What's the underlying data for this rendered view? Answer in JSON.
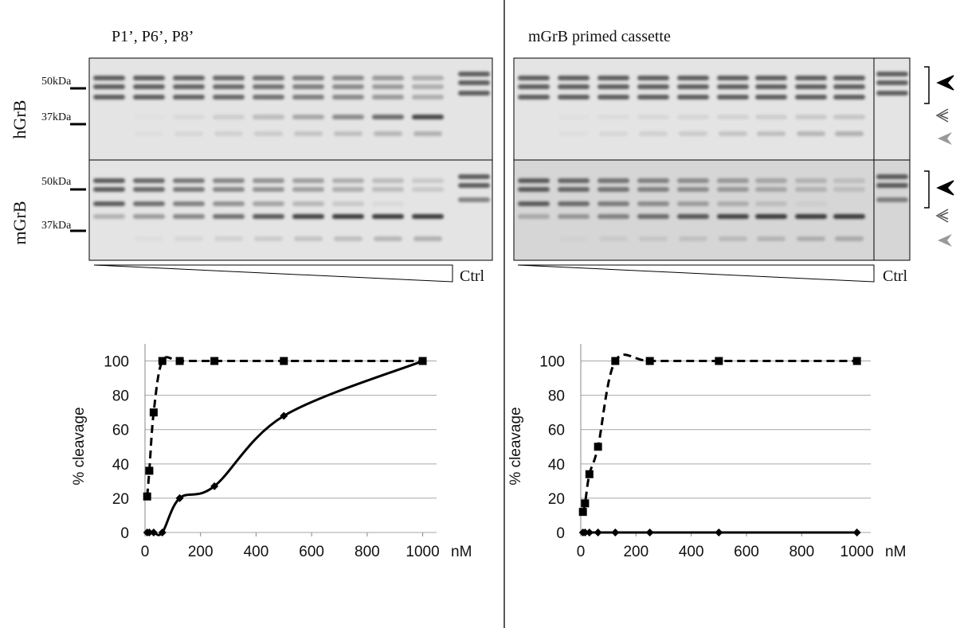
{
  "gels": {
    "panels": [
      {
        "title": "P1’, P6’, P8’",
        "ctrl": "Ctrl"
      },
      {
        "title": "mGrB primed cassette",
        "ctrl": "Ctrl"
      }
    ],
    "rows": [
      "hGrB",
      "mGrB"
    ],
    "markers": [
      "50kDa",
      "37kDa"
    ]
  },
  "chart_data": [
    {
      "type": "line",
      "ylabel": "% cleavage",
      "xlabel": "nM",
      "xlim": [
        0,
        1050
      ],
      "xticks": [
        0,
        200,
        400,
        600,
        800,
        1000
      ],
      "ylim": [
        0,
        110
      ],
      "yticks": [
        0,
        20,
        40,
        60,
        80,
        100
      ],
      "grid": true,
      "x": [
        7.8,
        15.6,
        31.25,
        62.5,
        125,
        250,
        500,
        1000
      ],
      "series": [
        {
          "color": "#000000",
          "line_style": "dashed",
          "marker": "square",
          "values": [
            21,
            36,
            70,
            100,
            100,
            100,
            100,
            100
          ]
        },
        {
          "color": "#000000",
          "line_style": "solid",
          "marker": "diamond",
          "values": [
            0,
            0,
            0,
            0,
            20,
            27,
            68,
            100
          ]
        }
      ]
    },
    {
      "type": "line",
      "ylabel": "% cleavage",
      "xlabel": "nM",
      "xlim": [
        0,
        1050
      ],
      "xticks": [
        0,
        200,
        400,
        600,
        800,
        1000
      ],
      "ylim": [
        0,
        110
      ],
      "yticks": [
        0,
        20,
        40,
        60,
        80,
        100
      ],
      "grid": true,
      "x": [
        7.8,
        15.6,
        31.25,
        62.5,
        125,
        250,
        500,
        1000
      ],
      "series": [
        {
          "color": "#000000",
          "line_style": "dashed",
          "marker": "square",
          "values": [
            12,
            17,
            34,
            50,
            100,
            100,
            100,
            100
          ]
        },
        {
          "color": "#000000",
          "line_style": "solid",
          "marker": "diamond",
          "values": [
            0,
            0,
            0,
            0,
            0,
            0,
            0,
            0
          ]
        }
      ]
    }
  ]
}
